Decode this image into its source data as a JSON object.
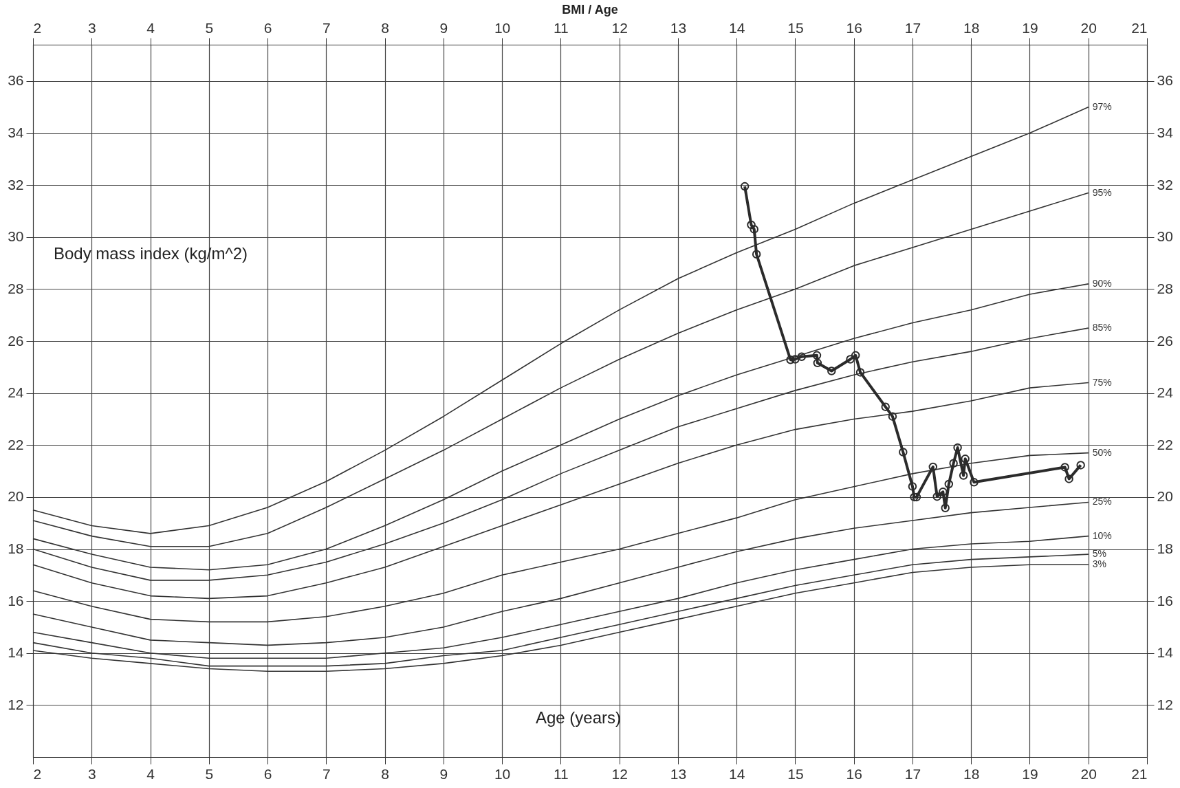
{
  "chart_data": {
    "type": "line",
    "title": "BMI / Age",
    "xlabel": "Age (years)",
    "ylabel": "Body mass index (kg/m^2)",
    "x": [
      2,
      3,
      4,
      5,
      6,
      7,
      8,
      9,
      10,
      11,
      12,
      13,
      14,
      15,
      16,
      17,
      18,
      19,
      20
    ],
    "series": [
      {
        "name": "97%",
        "color": "#333333",
        "values": [
          19.5,
          18.9,
          18.6,
          18.9,
          19.6,
          20.6,
          21.8,
          23.1,
          24.5,
          25.9,
          27.2,
          28.4,
          29.4,
          30.3,
          31.3,
          32.2,
          33.1,
          34.0,
          35.0
        ]
      },
      {
        "name": "95%",
        "color": "#333333",
        "values": [
          19.1,
          18.5,
          18.1,
          18.1,
          18.6,
          19.6,
          20.7,
          21.8,
          23.0,
          24.2,
          25.3,
          26.3,
          27.2,
          28.0,
          28.9,
          29.6,
          30.3,
          31.0,
          31.7
        ]
      },
      {
        "name": "90%",
        "color": "#333333",
        "values": [
          18.4,
          17.8,
          17.3,
          17.2,
          17.4,
          18.0,
          18.9,
          19.9,
          21.0,
          22.0,
          23.0,
          23.9,
          24.7,
          25.4,
          26.1,
          26.7,
          27.2,
          27.8,
          28.2
        ]
      },
      {
        "name": "85%",
        "color": "#333333",
        "values": [
          18.0,
          17.3,
          16.8,
          16.8,
          17.0,
          17.5,
          18.2,
          19.0,
          19.9,
          20.9,
          21.8,
          22.7,
          23.4,
          24.1,
          24.7,
          25.2,
          25.6,
          26.1,
          26.5
        ]
      },
      {
        "name": "75%",
        "color": "#333333",
        "values": [
          17.4,
          16.7,
          16.2,
          16.1,
          16.2,
          16.7,
          17.3,
          18.1,
          18.9,
          19.7,
          20.5,
          21.3,
          22.0,
          22.6,
          23.0,
          23.3,
          23.7,
          24.2,
          24.4
        ]
      },
      {
        "name": "50%",
        "color": "#333333",
        "values": [
          16.4,
          15.8,
          15.3,
          15.2,
          15.2,
          15.4,
          15.8,
          16.3,
          17.0,
          17.5,
          18.0,
          18.6,
          19.2,
          19.9,
          20.4,
          20.9,
          21.3,
          21.6,
          21.7
        ]
      },
      {
        "name": "25%",
        "color": "#333333",
        "values": [
          15.5,
          15.0,
          14.5,
          14.4,
          14.3,
          14.4,
          14.6,
          15.0,
          15.6,
          16.1,
          16.7,
          17.3,
          17.9,
          18.4,
          18.8,
          19.1,
          19.4,
          19.6,
          19.8
        ]
      },
      {
        "name": "10%",
        "color": "#333333",
        "values": [
          14.8,
          14.4,
          14.0,
          13.8,
          13.8,
          13.8,
          14.0,
          14.2,
          14.6,
          15.1,
          15.6,
          16.1,
          16.7,
          17.2,
          17.6,
          18.0,
          18.2,
          18.3,
          18.5
        ]
      },
      {
        "name": "5%",
        "color": "#333333",
        "values": [
          14.4,
          14.0,
          13.8,
          13.5,
          13.5,
          13.5,
          13.6,
          13.9,
          14.1,
          14.6,
          15.1,
          15.6,
          16.1,
          16.6,
          17.0,
          17.4,
          17.6,
          17.7,
          17.8
        ]
      },
      {
        "name": "3%",
        "color": "#333333",
        "values": [
          14.1,
          13.8,
          13.6,
          13.4,
          13.3,
          13.3,
          13.4,
          13.6,
          13.9,
          14.3,
          14.8,
          15.3,
          15.8,
          16.3,
          16.7,
          17.1,
          17.3,
          17.4,
          17.4
        ]
      },
      {
        "type": "line",
        "marker": "circle",
        "color": "#2b2b2b",
        "x": [
          14.14,
          14.25,
          14.3,
          14.34,
          14.92,
          15.0,
          15.11,
          15.37,
          15.38,
          15.62,
          15.94,
          16.03,
          16.11,
          16.54,
          16.66,
          16.84,
          17.0,
          17.03,
          17.07,
          17.35,
          17.42,
          17.52,
          17.56,
          17.62,
          17.7,
          17.77,
          17.87,
          17.9,
          18.05,
          19.6,
          19.67,
          19.87
        ],
        "values": [
          31.95,
          30.47,
          30.3,
          29.34,
          25.28,
          25.3,
          25.4,
          25.45,
          25.16,
          24.85,
          25.3,
          25.45,
          24.8,
          23.47,
          23.1,
          21.73,
          20.41,
          20.0,
          20.0,
          21.16,
          20.02,
          20.2,
          19.58,
          20.5,
          21.3,
          21.9,
          20.83,
          21.47,
          20.57,
          21.15,
          20.7,
          21.23
        ]
      }
    ],
    "xlim": [
      2,
      21
    ],
    "xticks": [
      2,
      3,
      4,
      5,
      6,
      7,
      8,
      9,
      10,
      11,
      12,
      13,
      14,
      15,
      16,
      17,
      18,
      19,
      20,
      21
    ],
    "x2lim": [
      2,
      21
    ],
    "x2ticks": [
      2,
      3,
      4,
      5,
      6,
      7,
      8,
      9,
      10,
      11,
      12,
      13,
      14,
      15,
      16,
      17,
      18,
      19,
      20,
      21
    ],
    "ylim": [
      10,
      37.4
    ],
    "yticks": [
      12,
      14,
      16,
      18,
      20,
      22,
      24,
      26,
      28,
      30,
      32,
      34,
      36
    ],
    "y2lim": [
      10,
      37.4
    ],
    "y2ticks": [
      12,
      14,
      16,
      18,
      20,
      22,
      24,
      26,
      28,
      30,
      32,
      34,
      36
    ],
    "grid": true,
    "marker": "none",
    "line_style": "solid"
  }
}
